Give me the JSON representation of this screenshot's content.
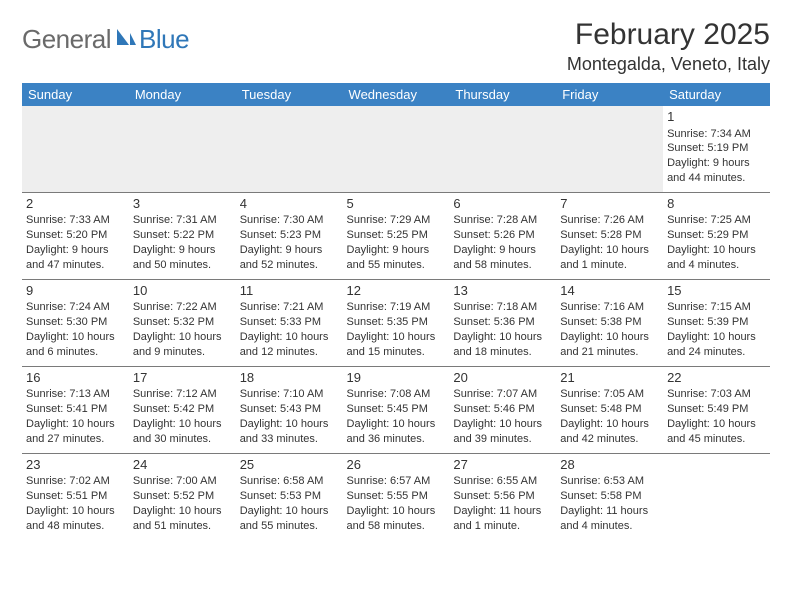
{
  "logo": {
    "text1": "General",
    "text2": "Blue"
  },
  "header": {
    "month_title": "February 2025",
    "location": "Montegalda, Veneto, Italy"
  },
  "style": {
    "header_bg": "#3b82c4",
    "header_fg": "#ffffff",
    "row_border": "#7a7a7a",
    "first_row_bg": "#eeeeee",
    "text_color": "#333333",
    "logo_gray": "#6a6a6a",
    "logo_blue": "#2f77b8",
    "font_day": 13,
    "font_cell": 11
  },
  "days": [
    "Sunday",
    "Monday",
    "Tuesday",
    "Wednesday",
    "Thursday",
    "Friday",
    "Saturday"
  ],
  "weeks": [
    [
      null,
      null,
      null,
      null,
      null,
      null,
      {
        "n": "1",
        "sr": "Sunrise: 7:34 AM",
        "ss": "Sunset: 5:19 PM",
        "d1": "Daylight: 9 hours",
        "d2": "and 44 minutes."
      }
    ],
    [
      {
        "n": "2",
        "sr": "Sunrise: 7:33 AM",
        "ss": "Sunset: 5:20 PM",
        "d1": "Daylight: 9 hours",
        "d2": "and 47 minutes."
      },
      {
        "n": "3",
        "sr": "Sunrise: 7:31 AM",
        "ss": "Sunset: 5:22 PM",
        "d1": "Daylight: 9 hours",
        "d2": "and 50 minutes."
      },
      {
        "n": "4",
        "sr": "Sunrise: 7:30 AM",
        "ss": "Sunset: 5:23 PM",
        "d1": "Daylight: 9 hours",
        "d2": "and 52 minutes."
      },
      {
        "n": "5",
        "sr": "Sunrise: 7:29 AM",
        "ss": "Sunset: 5:25 PM",
        "d1": "Daylight: 9 hours",
        "d2": "and 55 minutes."
      },
      {
        "n": "6",
        "sr": "Sunrise: 7:28 AM",
        "ss": "Sunset: 5:26 PM",
        "d1": "Daylight: 9 hours",
        "d2": "and 58 minutes."
      },
      {
        "n": "7",
        "sr": "Sunrise: 7:26 AM",
        "ss": "Sunset: 5:28 PM",
        "d1": "Daylight: 10 hours",
        "d2": "and 1 minute."
      },
      {
        "n": "8",
        "sr": "Sunrise: 7:25 AM",
        "ss": "Sunset: 5:29 PM",
        "d1": "Daylight: 10 hours",
        "d2": "and 4 minutes."
      }
    ],
    [
      {
        "n": "9",
        "sr": "Sunrise: 7:24 AM",
        "ss": "Sunset: 5:30 PM",
        "d1": "Daylight: 10 hours",
        "d2": "and 6 minutes."
      },
      {
        "n": "10",
        "sr": "Sunrise: 7:22 AM",
        "ss": "Sunset: 5:32 PM",
        "d1": "Daylight: 10 hours",
        "d2": "and 9 minutes."
      },
      {
        "n": "11",
        "sr": "Sunrise: 7:21 AM",
        "ss": "Sunset: 5:33 PM",
        "d1": "Daylight: 10 hours",
        "d2": "and 12 minutes."
      },
      {
        "n": "12",
        "sr": "Sunrise: 7:19 AM",
        "ss": "Sunset: 5:35 PM",
        "d1": "Daylight: 10 hours",
        "d2": "and 15 minutes."
      },
      {
        "n": "13",
        "sr": "Sunrise: 7:18 AM",
        "ss": "Sunset: 5:36 PM",
        "d1": "Daylight: 10 hours",
        "d2": "and 18 minutes."
      },
      {
        "n": "14",
        "sr": "Sunrise: 7:16 AM",
        "ss": "Sunset: 5:38 PM",
        "d1": "Daylight: 10 hours",
        "d2": "and 21 minutes."
      },
      {
        "n": "15",
        "sr": "Sunrise: 7:15 AM",
        "ss": "Sunset: 5:39 PM",
        "d1": "Daylight: 10 hours",
        "d2": "and 24 minutes."
      }
    ],
    [
      {
        "n": "16",
        "sr": "Sunrise: 7:13 AM",
        "ss": "Sunset: 5:41 PM",
        "d1": "Daylight: 10 hours",
        "d2": "and 27 minutes."
      },
      {
        "n": "17",
        "sr": "Sunrise: 7:12 AM",
        "ss": "Sunset: 5:42 PM",
        "d1": "Daylight: 10 hours",
        "d2": "and 30 minutes."
      },
      {
        "n": "18",
        "sr": "Sunrise: 7:10 AM",
        "ss": "Sunset: 5:43 PM",
        "d1": "Daylight: 10 hours",
        "d2": "and 33 minutes."
      },
      {
        "n": "19",
        "sr": "Sunrise: 7:08 AM",
        "ss": "Sunset: 5:45 PM",
        "d1": "Daylight: 10 hours",
        "d2": "and 36 minutes."
      },
      {
        "n": "20",
        "sr": "Sunrise: 7:07 AM",
        "ss": "Sunset: 5:46 PM",
        "d1": "Daylight: 10 hours",
        "d2": "and 39 minutes."
      },
      {
        "n": "21",
        "sr": "Sunrise: 7:05 AM",
        "ss": "Sunset: 5:48 PM",
        "d1": "Daylight: 10 hours",
        "d2": "and 42 minutes."
      },
      {
        "n": "22",
        "sr": "Sunrise: 7:03 AM",
        "ss": "Sunset: 5:49 PM",
        "d1": "Daylight: 10 hours",
        "d2": "and 45 minutes."
      }
    ],
    [
      {
        "n": "23",
        "sr": "Sunrise: 7:02 AM",
        "ss": "Sunset: 5:51 PM",
        "d1": "Daylight: 10 hours",
        "d2": "and 48 minutes."
      },
      {
        "n": "24",
        "sr": "Sunrise: 7:00 AM",
        "ss": "Sunset: 5:52 PM",
        "d1": "Daylight: 10 hours",
        "d2": "and 51 minutes."
      },
      {
        "n": "25",
        "sr": "Sunrise: 6:58 AM",
        "ss": "Sunset: 5:53 PM",
        "d1": "Daylight: 10 hours",
        "d2": "and 55 minutes."
      },
      {
        "n": "26",
        "sr": "Sunrise: 6:57 AM",
        "ss": "Sunset: 5:55 PM",
        "d1": "Daylight: 10 hours",
        "d2": "and 58 minutes."
      },
      {
        "n": "27",
        "sr": "Sunrise: 6:55 AM",
        "ss": "Sunset: 5:56 PM",
        "d1": "Daylight: 11 hours",
        "d2": "and 1 minute."
      },
      {
        "n": "28",
        "sr": "Sunrise: 6:53 AM",
        "ss": "Sunset: 5:58 PM",
        "d1": "Daylight: 11 hours",
        "d2": "and 4 minutes."
      },
      null
    ]
  ]
}
